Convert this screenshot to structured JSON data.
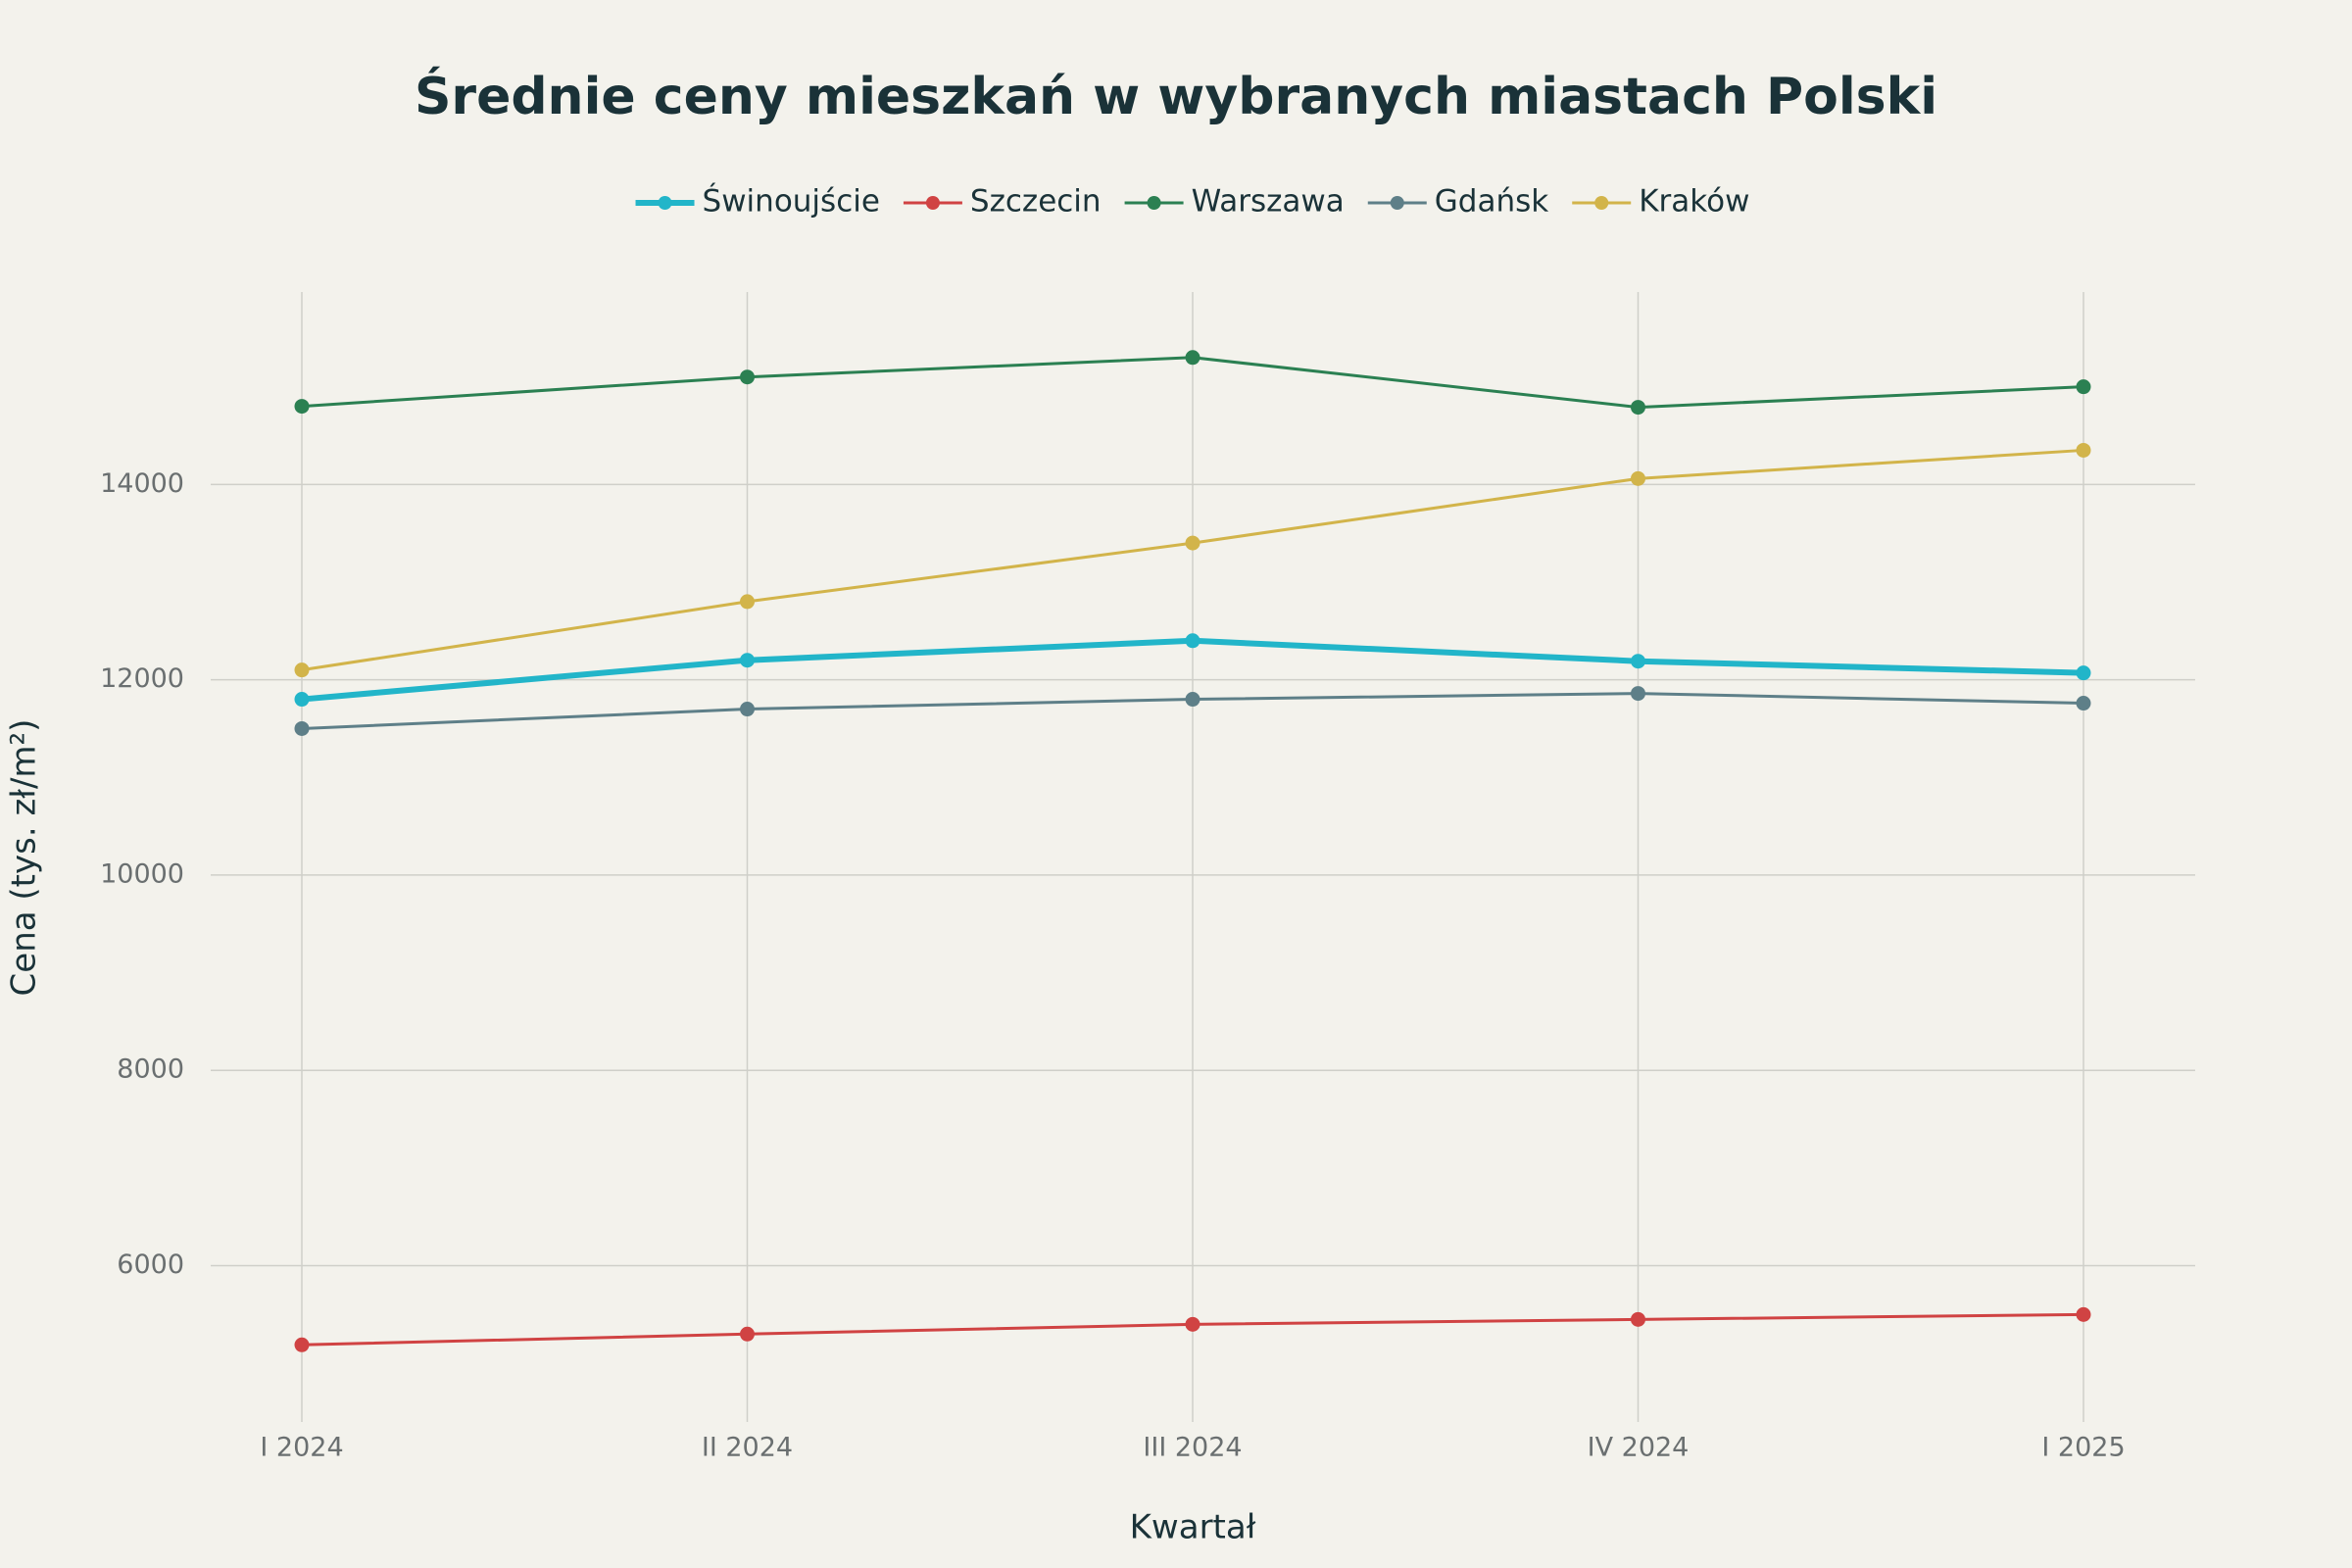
{
  "chart_data": {
    "type": "line",
    "title": "Średnie ceny mieszkań w wybranych miastach Polski",
    "x_label": "Kwartał",
    "y_label": "Cena (tys. zł/m²)",
    "categories": [
      "I 2024",
      "II 2024",
      "III 2024",
      "IV 2024",
      "I 2025"
    ],
    "series": [
      {
        "name": "Świnoujście",
        "color": "#22b5c9",
        "line_width": 6,
        "values": [
          11800,
          12200,
          12400,
          12190,
          12070
        ]
      },
      {
        "name": "Szczecin",
        "color": "#d04343",
        "line_width": 3,
        "values": [
          5190,
          5300,
          5400,
          5450,
          5500
        ]
      },
      {
        "name": "Warszawa",
        "color": "#2b8052",
        "line_width": 3,
        "values": [
          14800,
          15100,
          15300,
          14790,
          15000
        ]
      },
      {
        "name": "Gdańsk",
        "color": "#5e7f88",
        "line_width": 3,
        "values": [
          11500,
          11700,
          11800,
          11860,
          11760
        ]
      },
      {
        "name": "Kraków",
        "color": "#d2b44a",
        "line_width": 3,
        "values": [
          12100,
          12800,
          13400,
          14060,
          14350
        ]
      }
    ],
    "ylim": [
      4400,
      15970
    ],
    "yticks": [
      6000,
      8000,
      10000,
      12000,
      14000
    ],
    "grid": true,
    "legend": "top"
  }
}
